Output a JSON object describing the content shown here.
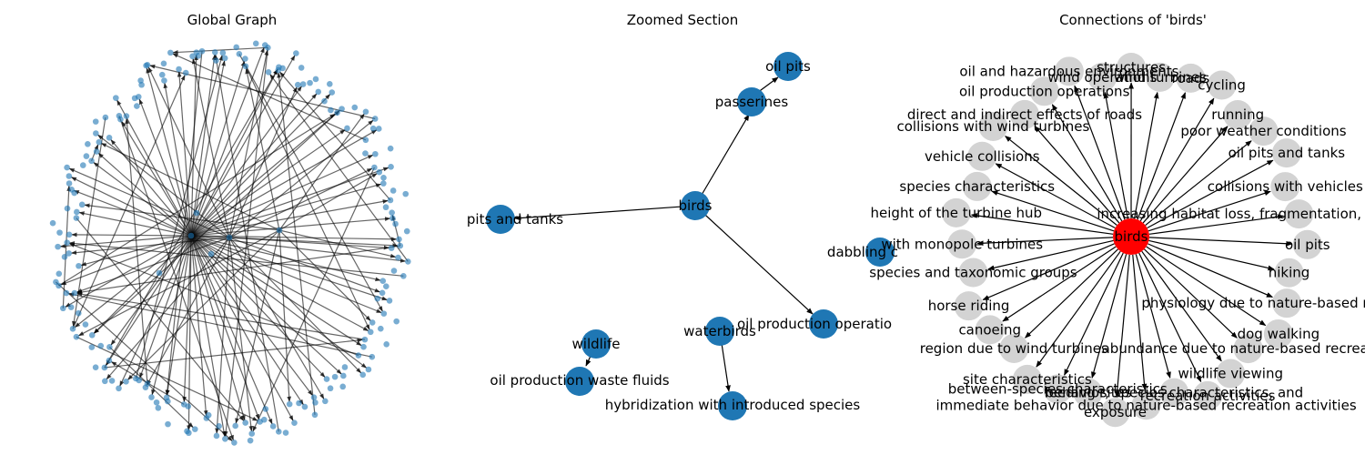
{
  "panels": {
    "global": {
      "title": "Global Graph"
    },
    "zoomed": {
      "title": "Zoomed Section"
    },
    "connections": {
      "title": "Connections of 'birds'"
    }
  },
  "zoomed": {
    "labels": {
      "birds": "birds",
      "passerines": "passerines",
      "oil_pits": "oil pits",
      "pits_tanks": "pits and tanks",
      "dabbling": "dabbling c",
      "waterbirds": "waterbirds",
      "oil_prod_ops": "oil production operatio",
      "wildlife": "wildlife",
      "waste_fluids": "oil production waste fluids",
      "hybridization": "hybridization with introduced species"
    }
  },
  "connections": {
    "center": "birds",
    "neighbors": [
      "wind turbines",
      "roads",
      "cycling",
      "running",
      "poor weather conditions",
      "oil pits and tanks",
      "collisions with vehicles",
      "increasing habitat loss, fragmentation, and climate change",
      "oil pits",
      "hiking",
      "physiology due to nature-based recreation",
      "dog walking",
      "abundance due to nature-based recreation",
      "wildlife viewing",
      "recreation activities",
      "behavior, species characteristics, and",
      "immediate behavior due to nature-based recreation activities",
      "exposure",
      "feeding sites",
      "between-species characteristics",
      "site characteristics",
      "region due to wind turbines",
      "canoeing",
      "horse riding",
      "species and taxonomic groups",
      "with monopole turbines",
      "height of the turbine hub",
      "species characteristics",
      "vehicle collisions",
      "collisions with wind turbines",
      "direct and indirect effects of roads",
      "oil production operations",
      "oil and hazardous environments",
      "wind operations",
      "structures"
    ]
  }
}
